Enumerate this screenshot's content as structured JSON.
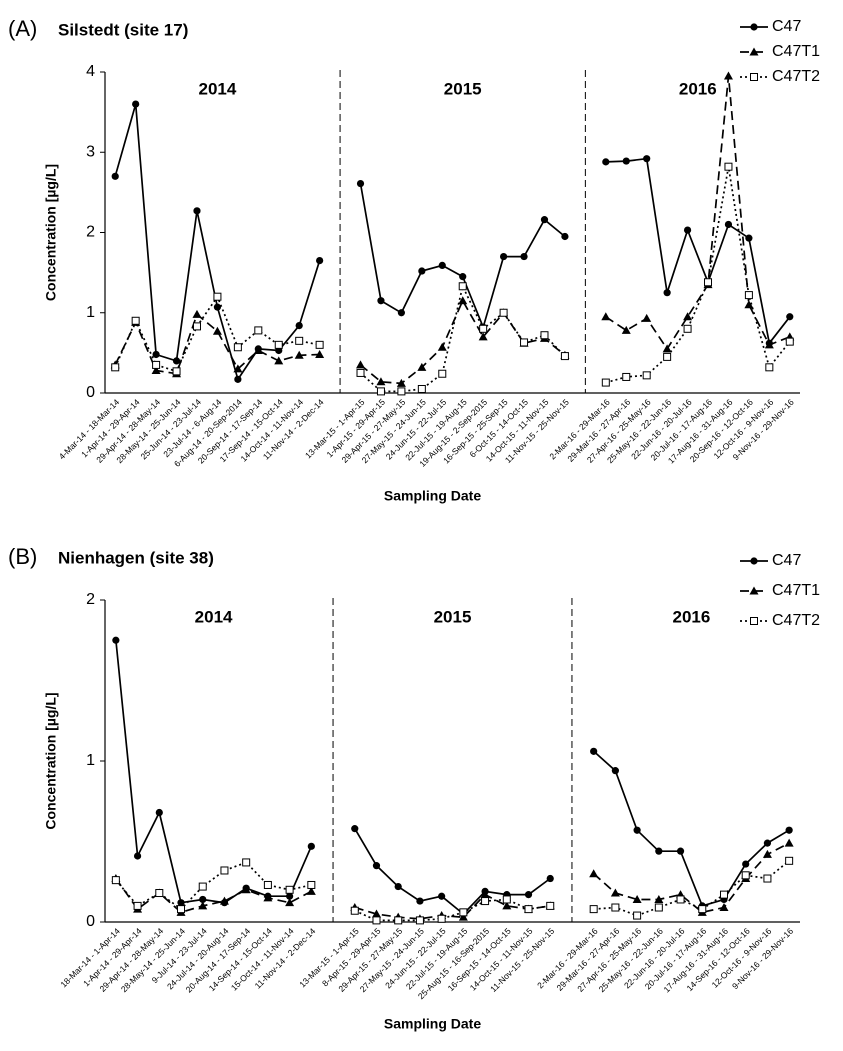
{
  "chart_data": [
    {
      "type": "line",
      "panel": "(A)",
      "title": "Silstedt (site 17)",
      "y_label": "Concentration [µg/L]",
      "x_label": "Sampling Date",
      "annotations": [
        "2014",
        "2015",
        "2016"
      ],
      "categories": [
        "4-Mar-14 - 18-Mar-14",
        "1-Apr-14 - 29-Apr-14",
        "29-Apr-14 - 28-May-14",
        "28-May-14 - 25-Jun-14",
        "25-Jun-14 - 23-Jul-14",
        "23-Jul-14 - 6-Aug-14",
        "6-Aug-14 - 20-Sep-2014",
        "20-Sep-14 - 17-Sep-14",
        "17-Sep-14 - 15-Oct-14",
        "14-Oct-14 - 11-Nov-14",
        "11-Nov-14 - 2-Dec-14",
        null,
        "13-Mar-15 - 1-Apr-15",
        "1-Apr-15 - 29-Apr-15",
        "29-Apr-15 - 27-May-15",
        "27-May-15 - 24-Jun-15",
        "24-Jun-15 - 22-Jul-15",
        "22-Jul-15 - 19-Aug-15",
        "19-Aug-15 - 2-Sep-2015",
        "16-Sep-15 - 25-Sep-15",
        "6-Oct-15 - 14-Oct-15",
        "14-Oct-15 - 11-Nov-15",
        "11-Nov-15 - 25-Nov-15",
        null,
        "2-Mar-16 - 29-Mar-16",
        "29-Mar-16 - 27-Apr-16",
        "27-Apr-16 - 25-May-16",
        "25-May-16 - 22-Jun-16",
        "22-Jun-16 - 20-Jul-16",
        "20-Jul-16 - 17-Aug-16",
        "17-Aug-16 - 31-Aug-16",
        "20-Sep-16 - 12-Oct-16",
        "12-Oct-16 - 9-Nov-16",
        "9-Nov-16 - 29-Nov-16"
      ],
      "series": [
        {
          "name": "C47",
          "color": "#000000",
          "dash": "solid",
          "marker": "circle",
          "values": [
            2.7,
            3.6,
            0.48,
            0.4,
            2.27,
            1.07,
            0.17,
            0.55,
            0.53,
            0.84,
            1.65,
            null,
            2.61,
            1.15,
            1.0,
            1.52,
            1.59,
            1.45,
            0.82,
            1.7,
            1.7,
            2.16,
            1.95,
            null,
            2.88,
            2.89,
            2.92,
            1.25,
            2.03,
            1.38,
            2.1,
            1.93,
            0.62,
            0.95
          ]
        },
        {
          "name": "C47T1",
          "color": "#000000",
          "dash": "dashed",
          "marker": "triangle",
          "values": [
            0.35,
            0.88,
            0.28,
            0.24,
            0.98,
            0.77,
            0.3,
            0.53,
            0.4,
            0.47,
            0.48,
            null,
            0.35,
            0.14,
            0.12,
            0.32,
            0.57,
            1.15,
            0.7,
            1.0,
            0.62,
            0.68,
            0.47,
            null,
            0.95,
            0.78,
            0.93,
            0.55,
            0.95,
            1.35,
            3.95,
            1.1,
            0.6,
            0.7
          ]
        },
        {
          "name": "C47T2",
          "color": "#000000",
          "dash": "dotted",
          "marker": "square",
          "values": [
            0.32,
            0.9,
            0.35,
            0.27,
            0.83,
            1.2,
            0.57,
            0.78,
            0.6,
            0.65,
            0.6,
            null,
            0.25,
            0.02,
            0.02,
            0.05,
            0.24,
            1.33,
            0.8,
            1.0,
            0.63,
            0.72,
            0.46,
            null,
            0.13,
            0.2,
            0.22,
            0.45,
            0.8,
            1.38,
            2.82,
            1.22,
            0.32,
            0.64
          ]
        }
      ],
      "ylim": [
        0,
        4
      ],
      "yticks": [
        0,
        1,
        2,
        3,
        4
      ],
      "grid": false,
      "legend": "right"
    },
    {
      "type": "line",
      "panel": "(B)",
      "title": "Nienhagen (site 38)",
      "y_label": "Concentration [µg/L]",
      "x_label": "Sampling Date",
      "annotations": [
        "2014",
        "2015",
        "2016"
      ],
      "categories": [
        "18-Mar-14 - 1-Apr-14",
        "1-Apr-14 - 29-Apr-14",
        "29-Apr-14 - 28-May-14",
        "28-May-14 - 25-Jun-14",
        "9-Jul-14 - 23-Jul-14",
        "24-Jul-14 - 20-Aug-14",
        "20-Aug-14 - 17-Sep-14",
        "14-Sep-14 - 15-Oct-14",
        "15-Oct-14 - 11-Nov-14",
        "11-Nov-14 - 2-Dec-14",
        null,
        "13-Mar-15 - 1-Apr-15",
        "8-Apr-15 - 29-Apr-15",
        "29-Apr-15 - 27-May-15",
        "27-May-15 - 24-Jun-15",
        "24-Jun-15 - 22-Jul-15",
        "22-Jul-15 - 19-Aug-15",
        "25-Aug-15 - 16-Sep-2015",
        "16-Sep-15 - 14-Oct-15",
        "14-Oct-15 - 11-Nov-15",
        "11-Nov-15 - 25-Nov-15",
        null,
        "2-Mar-16 - 29-Mar-16",
        "29-Mar-16 - 27-Apr-16",
        "27-Apr-16 - 25-May-16",
        "25-May-16 - 22-Jun-16",
        "22-Jun-16 - 20-Jul-16",
        "20-Jul-16 - 17-Aug-16",
        "17-Aug-16 - 31-Aug-16",
        "14-Sep-16 - 12-Oct-16",
        "12-Oct-16 - 9-Nov-16",
        "9-Nov-16 - 29-Nov-16"
      ],
      "series": [
        {
          "name": "C47",
          "color": "#000000",
          "dash": "solid",
          "marker": "circle",
          "values": [
            1.75,
            0.41,
            0.68,
            0.12,
            0.14,
            0.12,
            0.21,
            0.16,
            0.16,
            0.47,
            null,
            0.58,
            0.35,
            0.22,
            0.13,
            0.16,
            0.05,
            0.19,
            0.17,
            0.17,
            0.27,
            null,
            1.06,
            0.94,
            0.57,
            0.44,
            0.44,
            0.1,
            0.14,
            0.36,
            0.49,
            0.57
          ]
        },
        {
          "name": "C47T1",
          "color": "#000000",
          "dash": "dashed",
          "marker": "triangle",
          "values": [
            0.27,
            0.08,
            0.18,
            0.06,
            0.1,
            0.13,
            0.2,
            0.15,
            0.12,
            0.19,
            null,
            0.09,
            0.05,
            0.03,
            0.02,
            0.04,
            0.03,
            0.17,
            0.1,
            0.08,
            0.1,
            null,
            0.3,
            0.18,
            0.14,
            0.14,
            0.17,
            0.06,
            0.09,
            0.27,
            0.42,
            0.49
          ]
        },
        {
          "name": "C47T2",
          "color": "#000000",
          "dash": "dotted",
          "marker": "square",
          "values": [
            0.26,
            0.1,
            0.18,
            0.08,
            0.22,
            0.32,
            0.37,
            0.23,
            0.2,
            0.23,
            null,
            0.07,
            0.01,
            0.01,
            0.01,
            0.02,
            0.06,
            0.13,
            0.14,
            0.08,
            0.1,
            null,
            0.08,
            0.09,
            0.04,
            0.09,
            0.14,
            0.08,
            0.17,
            0.29,
            0.27,
            0.38
          ]
        }
      ],
      "ylim": [
        0,
        2
      ],
      "yticks": [
        0,
        1,
        2
      ],
      "grid": false,
      "legend": "right"
    }
  ]
}
